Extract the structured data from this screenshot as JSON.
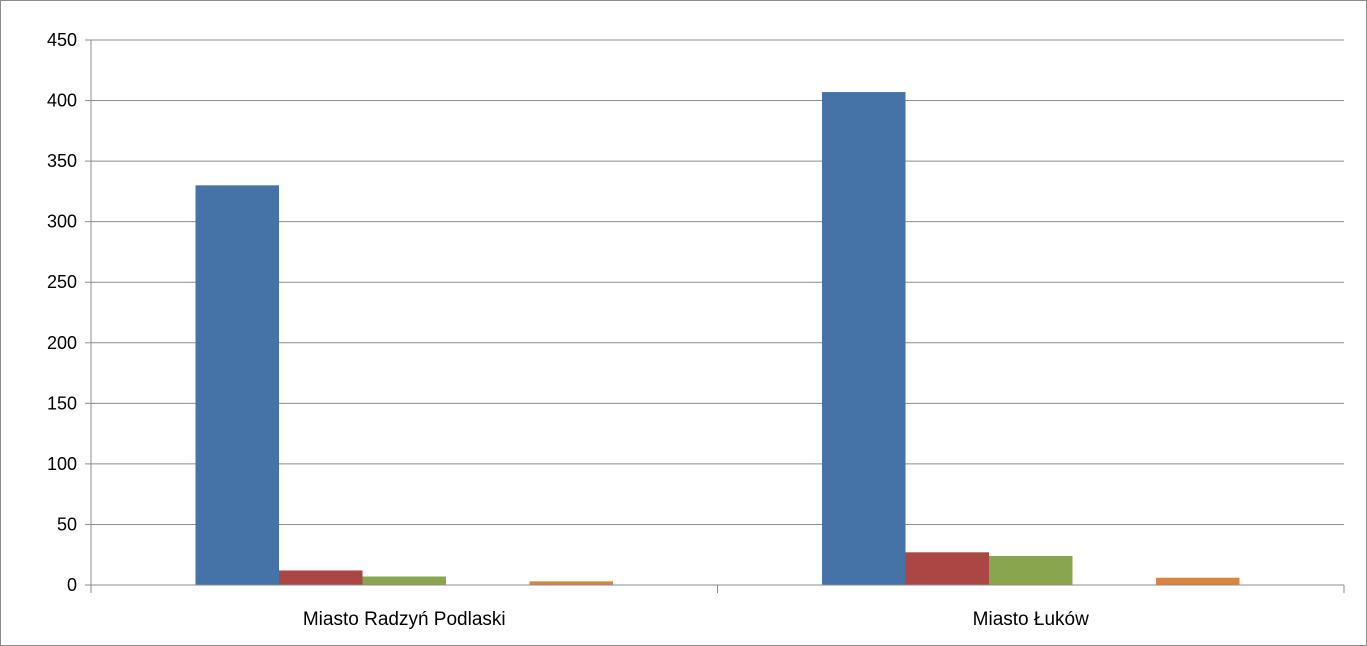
{
  "chart_data": {
    "type": "bar",
    "title": "",
    "xlabel": "",
    "ylabel": "",
    "categories": [
      "Miasto Radzyń Podlaski",
      "Miasto Łuków"
    ],
    "ylim": [
      0,
      450
    ],
    "yticks": [
      0,
      50,
      100,
      150,
      200,
      250,
      300,
      350,
      400,
      450
    ],
    "grid": true,
    "legend": "none",
    "series": [
      {
        "color": "#4572A7",
        "values": [
          330,
          407
        ]
      },
      {
        "color": "#AA4643",
        "values": [
          12,
          27
        ]
      },
      {
        "color": "#89A54E",
        "values": [
          7,
          24
        ]
      },
      {
        "color": "#71588F",
        "values": [
          0,
          0
        ]
      },
      {
        "color": "#DB843D",
        "values": [
          3,
          6
        ]
      }
    ]
  }
}
